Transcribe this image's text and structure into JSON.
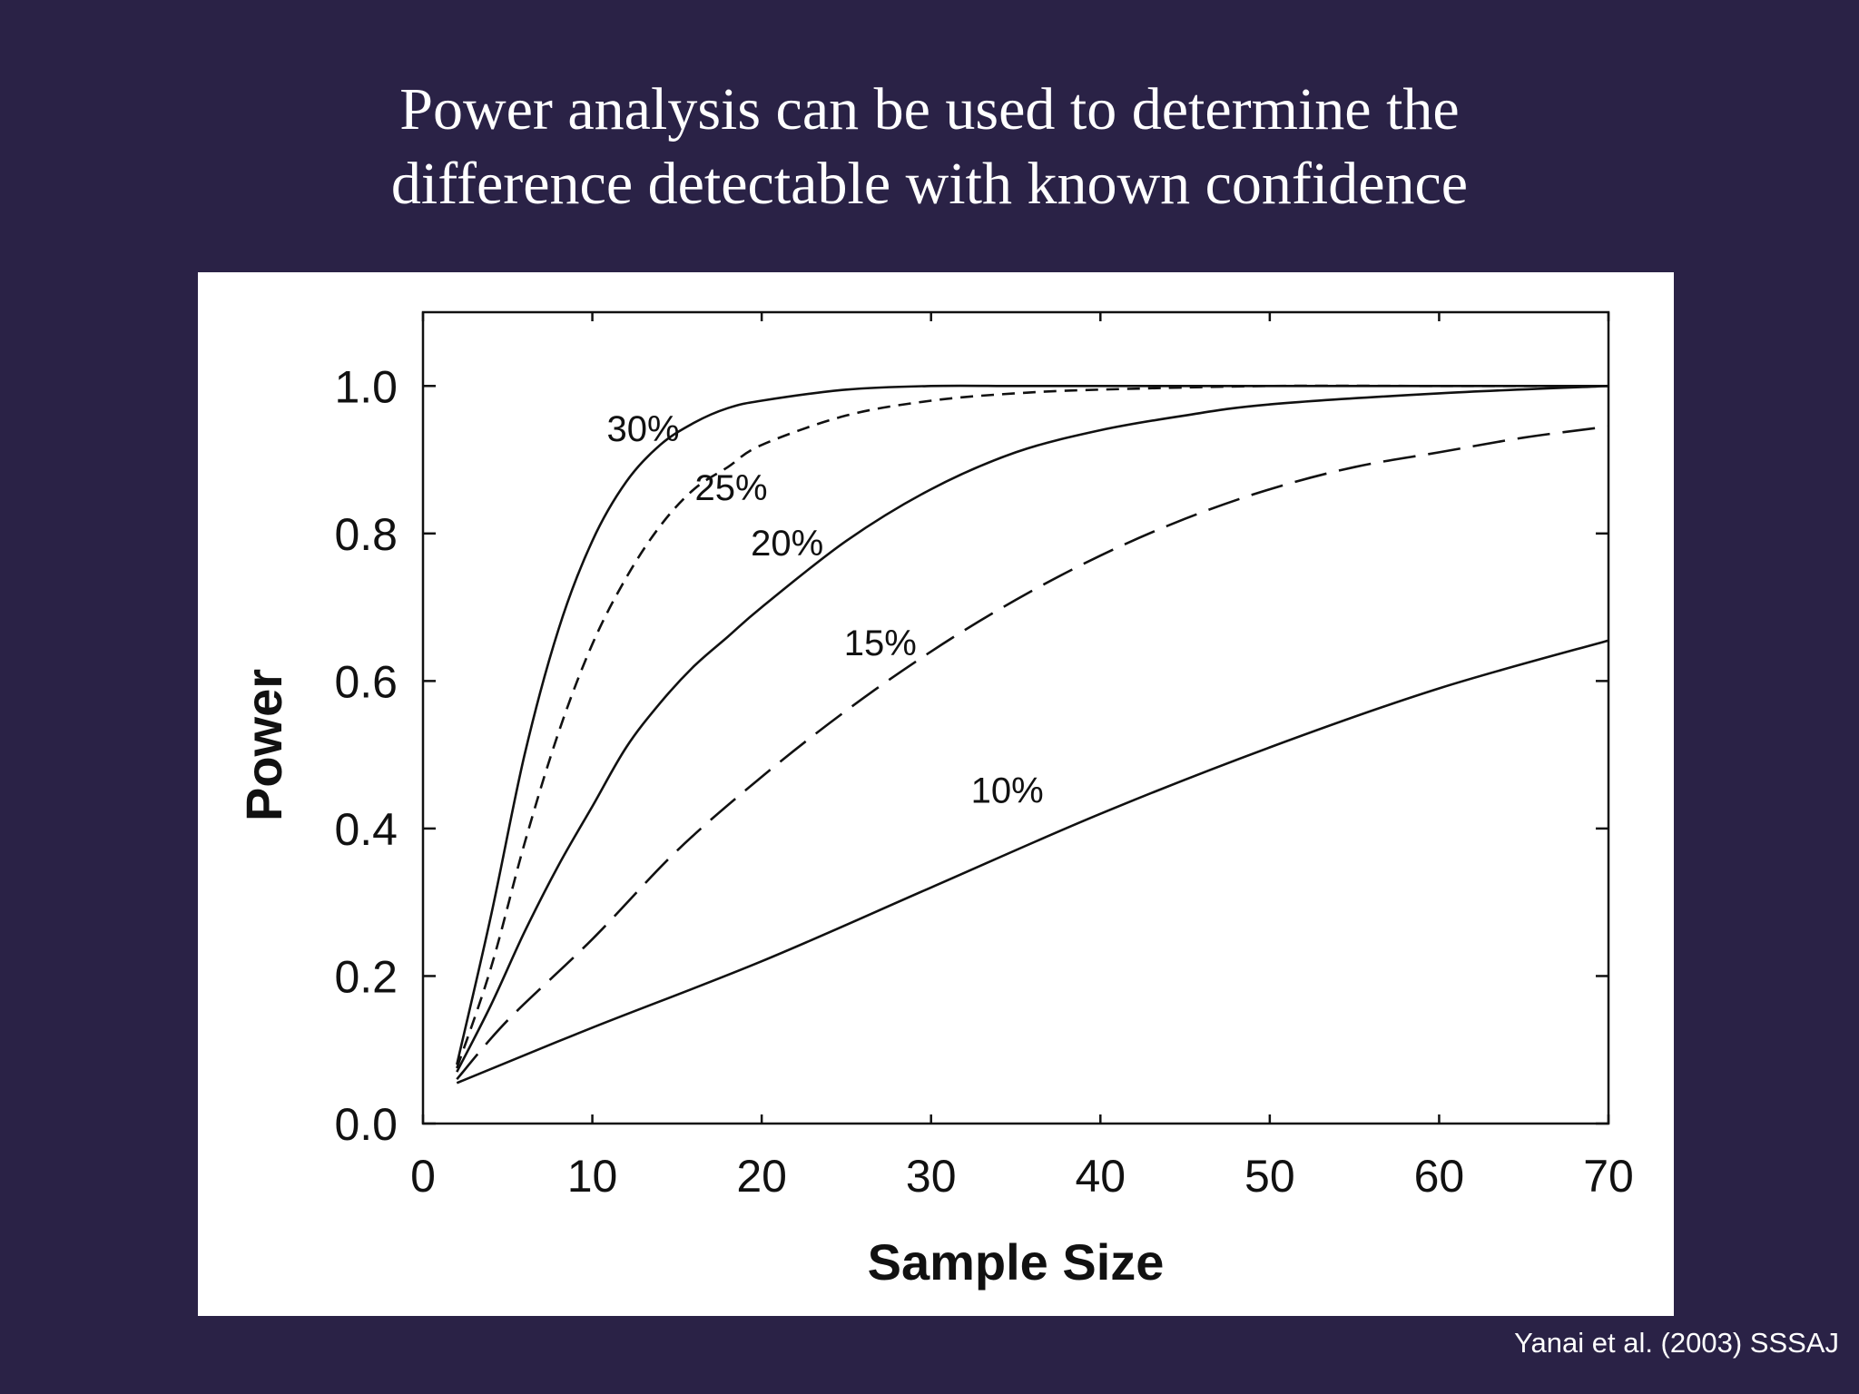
{
  "slide": {
    "title_line1": "Power analysis can be used to determine the",
    "title_line2": "difference detectable with known confidence",
    "citation": "Yanai et al. (2003) SSSAJ",
    "background_color": "#2a2246"
  },
  "chart_data": {
    "type": "line",
    "title": "",
    "xlabel": "Sample Size",
    "ylabel": "Power",
    "xlim": [
      0,
      70
    ],
    "ylim": [
      0,
      1.1
    ],
    "x_ticks": [
      "0",
      "10",
      "20",
      "30",
      "40",
      "50",
      "60",
      "70"
    ],
    "y_ticks": [
      "0.0",
      "0.2",
      "0.4",
      "0.6",
      "0.8",
      "1.0"
    ],
    "grid": false,
    "legend": "none",
    "line_color": "#111111",
    "series": [
      {
        "name": "30%",
        "style": "solid",
        "x": [
          2,
          4,
          6,
          8,
          10,
          12,
          14,
          16,
          18,
          20,
          25,
          30,
          35,
          40,
          50,
          60,
          70
        ],
        "y": [
          0.08,
          0.28,
          0.5,
          0.67,
          0.79,
          0.87,
          0.92,
          0.95,
          0.97,
          0.98,
          0.995,
          1.0,
          1.0,
          1.0,
          1.0,
          1.0,
          1.0
        ]
      },
      {
        "name": "25%",
        "style": "dashed",
        "x": [
          2,
          4,
          6,
          8,
          10,
          12,
          14,
          16,
          18,
          20,
          25,
          30,
          35,
          40,
          50,
          60,
          70
        ],
        "y": [
          0.075,
          0.21,
          0.38,
          0.53,
          0.65,
          0.74,
          0.81,
          0.86,
          0.89,
          0.92,
          0.96,
          0.98,
          0.99,
          0.995,
          1.0,
          1.0,
          1.0
        ]
      },
      {
        "name": "20%",
        "style": "solid",
        "x": [
          2,
          4,
          6,
          8,
          10,
          12,
          14,
          16,
          18,
          20,
          25,
          30,
          35,
          40,
          45,
          50,
          60,
          70
        ],
        "y": [
          0.07,
          0.16,
          0.26,
          0.35,
          0.43,
          0.51,
          0.57,
          0.62,
          0.66,
          0.7,
          0.79,
          0.86,
          0.91,
          0.94,
          0.96,
          0.975,
          0.99,
          1.0
        ]
      },
      {
        "name": "15%",
        "style": "long-dashed",
        "x": [
          2,
          5,
          10,
          15,
          20,
          25,
          30,
          35,
          40,
          45,
          50,
          55,
          60,
          65,
          70
        ],
        "y": [
          0.06,
          0.14,
          0.25,
          0.37,
          0.47,
          0.56,
          0.64,
          0.71,
          0.77,
          0.82,
          0.86,
          0.89,
          0.91,
          0.93,
          0.945
        ]
      },
      {
        "name": "10%",
        "style": "solid",
        "x": [
          2,
          10,
          20,
          30,
          40,
          50,
          60,
          70
        ],
        "y": [
          0.055,
          0.13,
          0.22,
          0.32,
          0.42,
          0.51,
          0.59,
          0.655
        ]
      }
    ],
    "annotations": [
      {
        "text": "30%",
        "x": 13,
        "y": 0.925
      },
      {
        "text": "25%",
        "x": 18.2,
        "y": 0.845
      },
      {
        "text": "20%",
        "x": 21.5,
        "y": 0.77
      },
      {
        "text": "15%",
        "x": 27,
        "y": 0.635
      },
      {
        "text": "10%",
        "x": 34.5,
        "y": 0.435
      }
    ]
  }
}
